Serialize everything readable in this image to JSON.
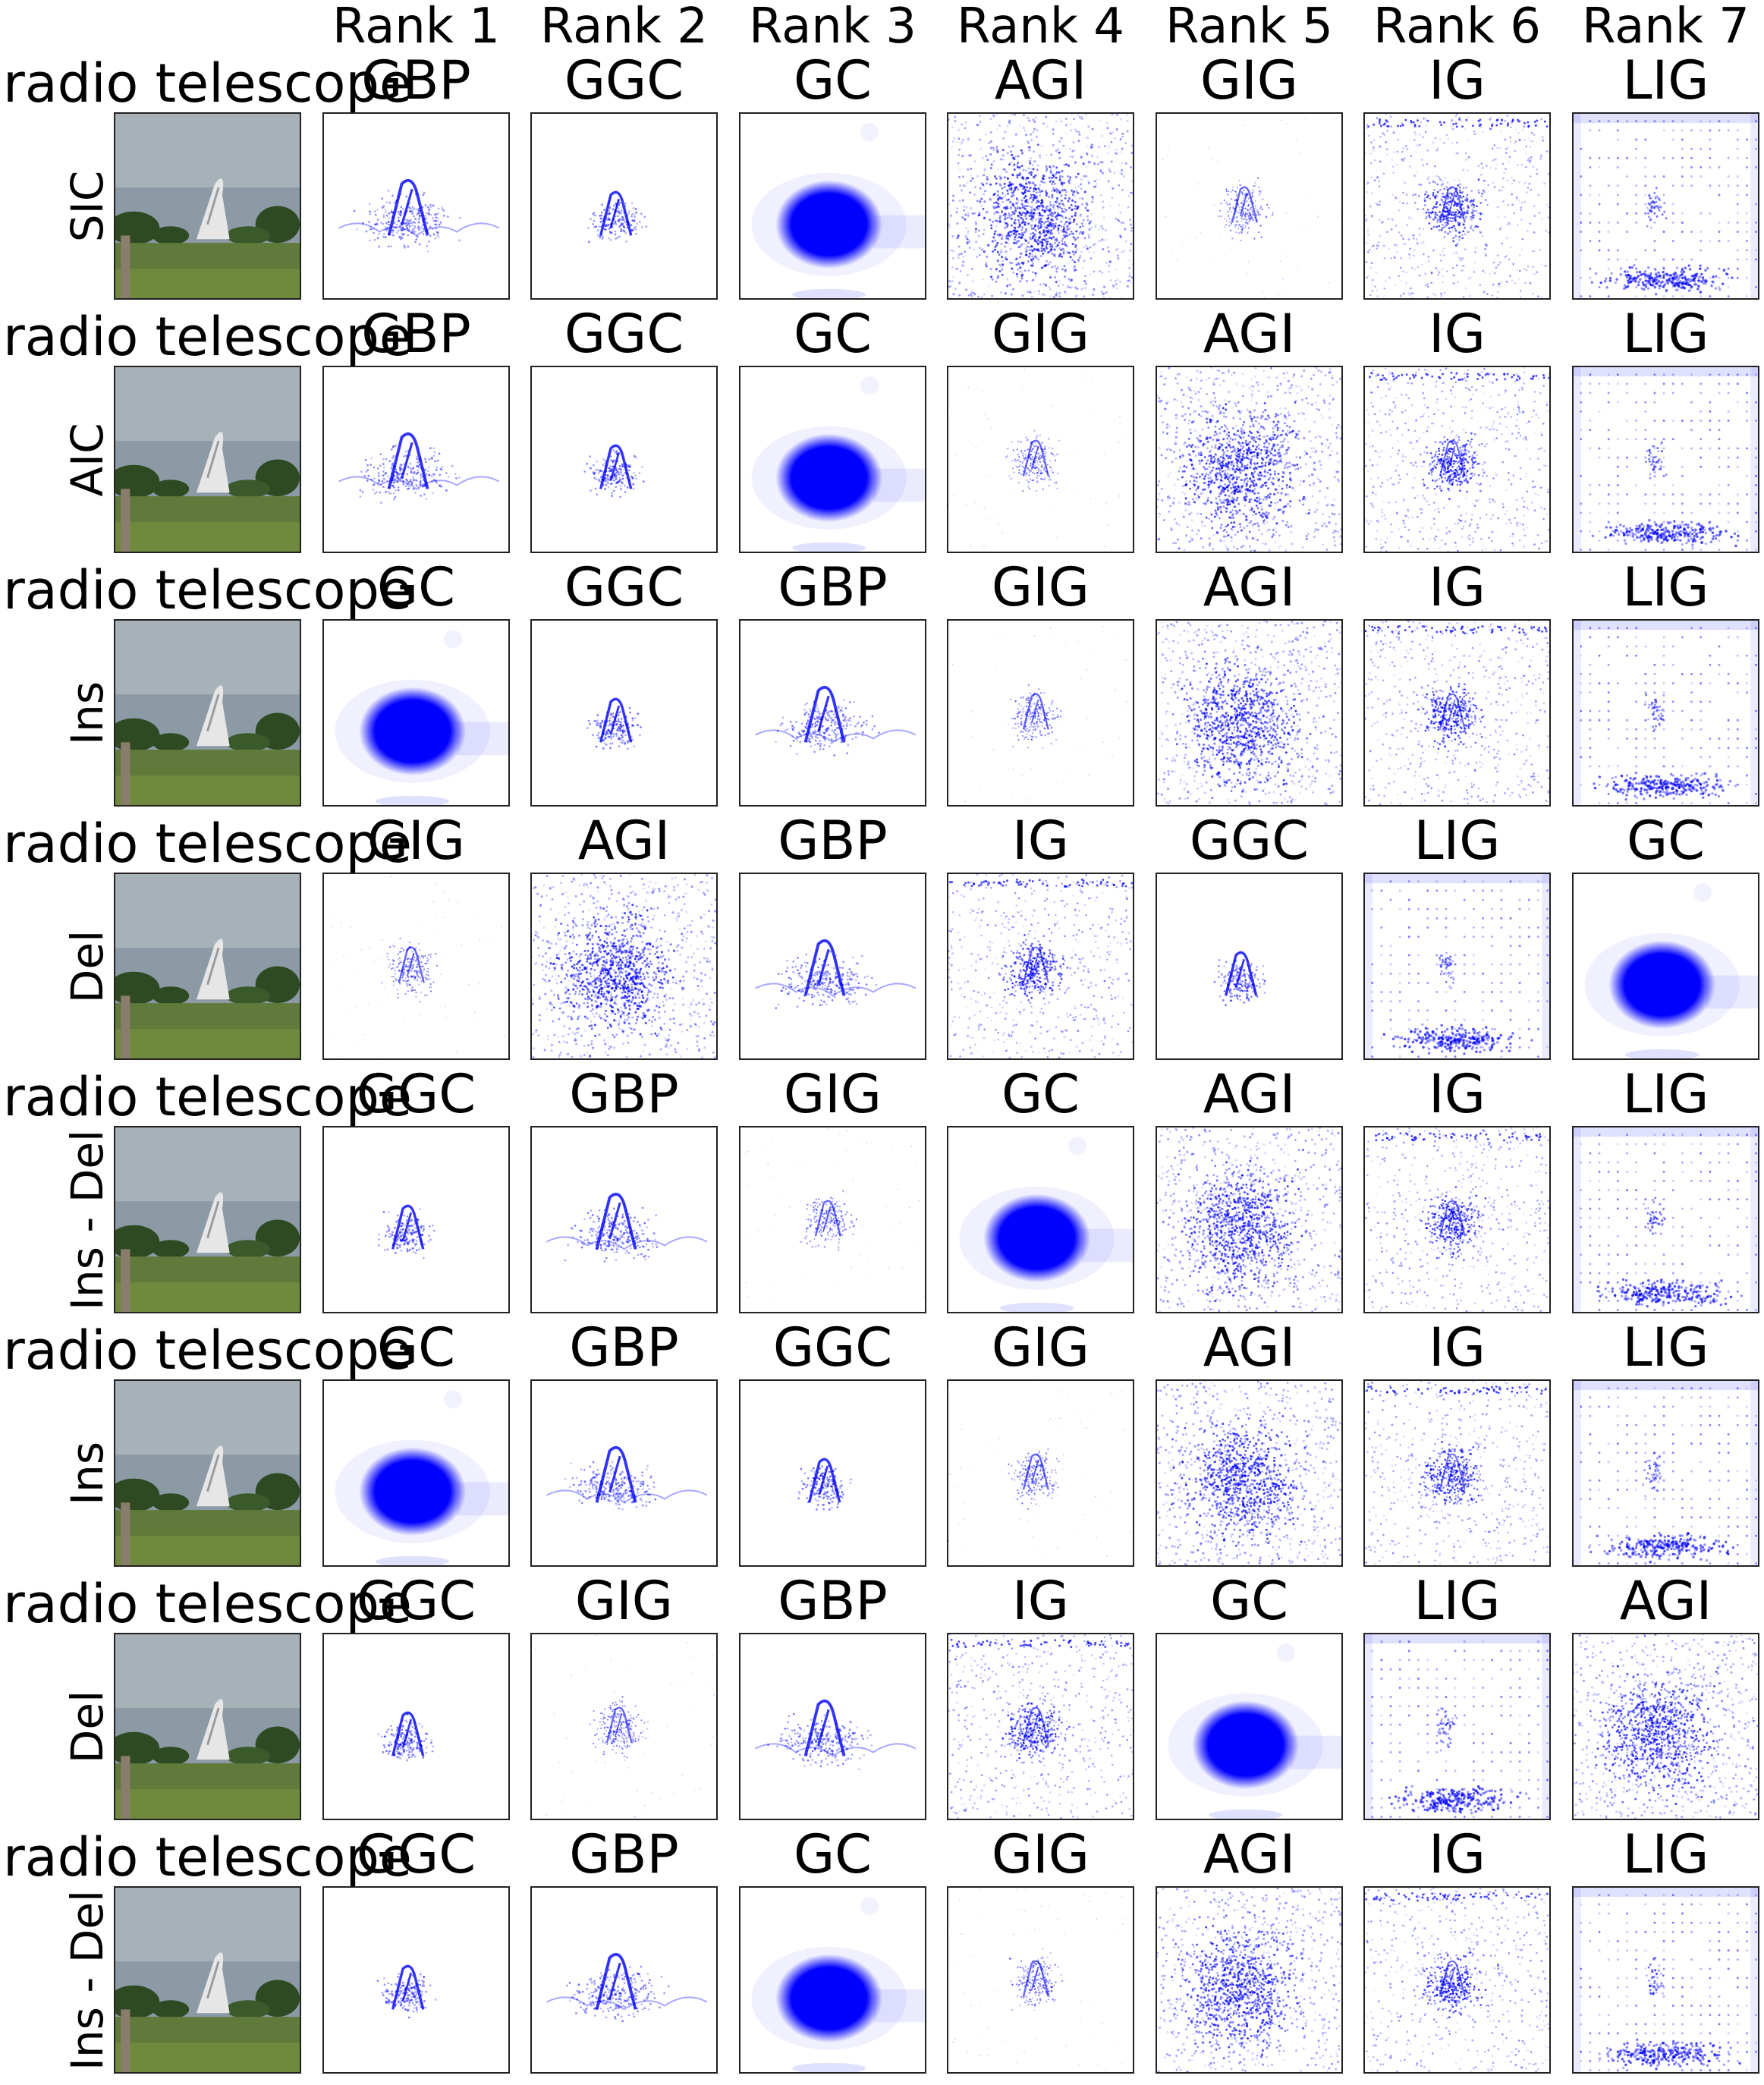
{
  "ranks": [
    "Rank 1",
    "Rank 2",
    "Rank 3",
    "Rank 4",
    "Rank 5",
    "Rank 6",
    "Rank 7"
  ],
  "rows": [
    {
      "class_label": "radio telescope",
      "metric": "SIC",
      "methods": [
        "GBP",
        "GGC",
        "GC",
        "AGI",
        "GIG",
        "IG",
        "LIG"
      ]
    },
    {
      "class_label": "radio telescope",
      "metric": "AIC",
      "methods": [
        "GBP",
        "GGC",
        "GC",
        "GIG",
        "AGI",
        "IG",
        "LIG"
      ]
    },
    {
      "class_label": "radio telescope",
      "metric": "Ins",
      "methods": [
        "GC",
        "GGC",
        "GBP",
        "GIG",
        "AGI",
        "IG",
        "LIG"
      ]
    },
    {
      "class_label": "radio telescope",
      "metric": "Del",
      "methods": [
        "GIG",
        "AGI",
        "GBP",
        "IG",
        "GGC",
        "LIG",
        "GC"
      ]
    },
    {
      "class_label": "radio telescope",
      "metric": "Ins - Del",
      "methods": [
        "GGC",
        "GBP",
        "GIG",
        "GC",
        "AGI",
        "IG",
        "LIG"
      ]
    },
    {
      "class_label": "radio telescope",
      "metric": "Ins",
      "methods": [
        "GC",
        "GBP",
        "GGC",
        "GIG",
        "AGI",
        "IG",
        "LIG"
      ]
    },
    {
      "class_label": "radio telescope",
      "metric": "Del",
      "methods": [
        "GGC",
        "GIG",
        "GBP",
        "IG",
        "GC",
        "LIG",
        "AGI"
      ]
    },
    {
      "class_label": "radio telescope",
      "metric": "Ins - Del",
      "methods": [
        "GGC",
        "GBP",
        "GC",
        "GIG",
        "AGI",
        "IG",
        "LIG"
      ]
    }
  ],
  "colors": {
    "saliency": "#0000ff",
    "sky": "#8c9aa6",
    "grass": "#5f7a3a",
    "tree": "#2d4a22",
    "dish": "#e6e6e6"
  }
}
